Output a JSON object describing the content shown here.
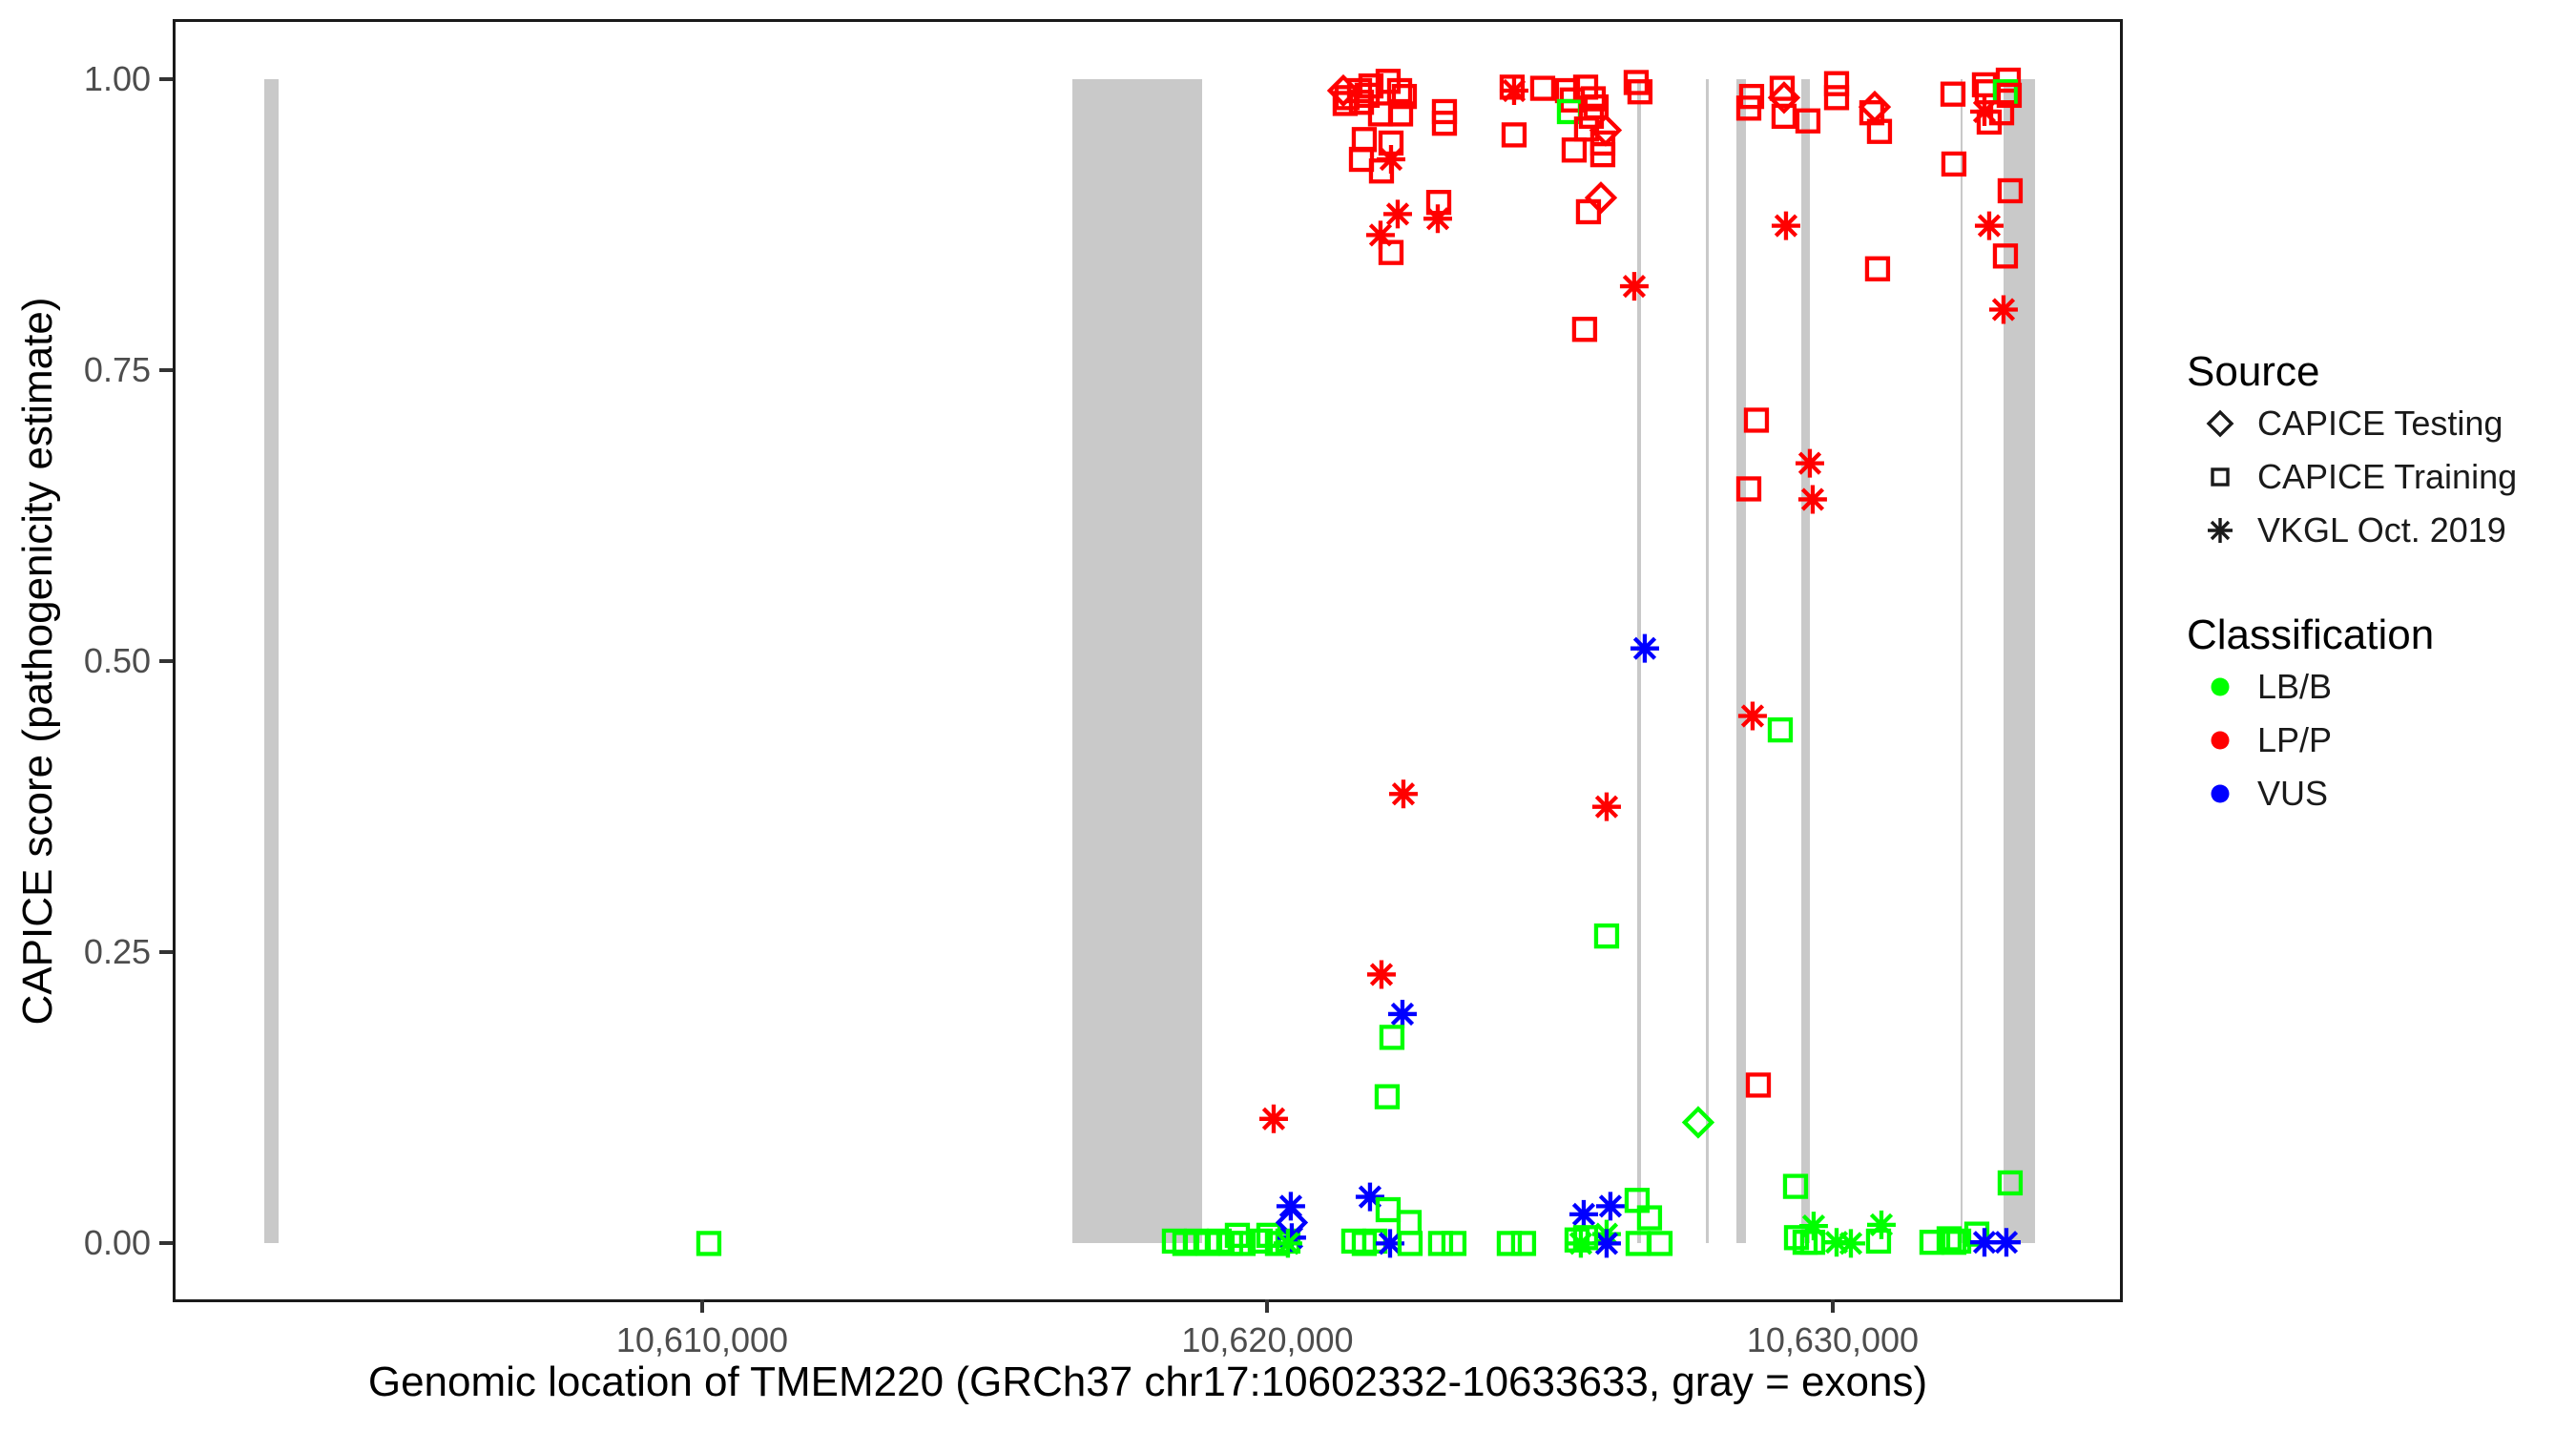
{
  "figure": {
    "x_axis_title": "Genomic location of TMEM220 (GRCh37 chr17:10602332-10633633, gray = exons)",
    "y_axis_title": "CAPICE score (pathogenicity estimate)"
  },
  "legend": {
    "source": {
      "title": "Source",
      "items": [
        {
          "symbol": "diamond",
          "label": "CAPICE Testing"
        },
        {
          "symbol": "square",
          "label": "CAPICE Training"
        },
        {
          "symbol": "asterisk",
          "label": "VKGL Oct. 2019"
        }
      ]
    },
    "classification": {
      "title": "Classification",
      "items": [
        {
          "color": "#00FF00",
          "label": "LB/B"
        },
        {
          "color": "#FF0000",
          "label": "LP/P"
        },
        {
          "color": "#0000FF",
          "label": "VUS"
        }
      ]
    }
  },
  "chart_data": {
    "type": "scatter",
    "xlabel": "Genomic location of TMEM220 (GRCh37 chr17:10602332-10633633, gray = exons)",
    "ylabel": "CAPICE score (pathogenicity estimate)",
    "xlim": [
      10600684,
      10635081
    ],
    "ylim": [
      -0.048,
      1.049
    ],
    "grid": false,
    "x_ticks": [
      {
        "value": 10610000,
        "label": "10,610,000"
      },
      {
        "value": 10620000,
        "label": "10,620,000"
      },
      {
        "value": 10630000,
        "label": "10,630,000"
      }
    ],
    "y_ticks": [
      {
        "value": 0.0,
        "label": "0.00"
      },
      {
        "value": 0.25,
        "label": "0.25"
      },
      {
        "value": 0.5,
        "label": "0.50"
      },
      {
        "value": 0.75,
        "label": "0.75"
      },
      {
        "value": 1.0,
        "label": "1.00"
      }
    ],
    "exon_color": "#C9C9C9",
    "exons": [
      [
        10602260,
        10602515
      ],
      [
        10616549,
        10618844
      ],
      [
        10626540,
        10626605
      ],
      [
        10627755,
        10627805
      ],
      [
        10628295,
        10628465
      ],
      [
        10629440,
        10629595
      ],
      [
        10632262,
        10632295
      ],
      [
        10633020,
        10633580
      ]
    ],
    "encoding": {
      "point_format": "[genomic_position, capice_score, shape, classification]",
      "shapes": {
        "sq": "CAPICE Training (open square)",
        "di": "CAPICE Testing (open diamond)",
        "as": "VKGL Oct. 2019 (asterisk)"
      },
      "class_colors": {
        "LB/B": "#00FF00",
        "LP/P": "#FF0000",
        "VUS": "#0000FF"
      }
    },
    "points": [
      [
        10621342,
        0.99,
        "di",
        "LP/P"
      ],
      [
        10621409,
        0.984,
        "sq",
        "LP/P"
      ],
      [
        10621629,
        0.99,
        "sq",
        "LP/P"
      ],
      [
        10621663,
        0.98,
        "sq",
        "LP/P"
      ],
      [
        10621831,
        0.994,
        "sq",
        "LP/P"
      ],
      [
        10622135,
        0.998,
        "sq",
        "LP/P"
      ],
      [
        10622338,
        0.99,
        "sq",
        "LP/P"
      ],
      [
        10622422,
        0.985,
        "sq",
        "LP/P"
      ],
      [
        10621764,
        0.986,
        "sq",
        "LP/P"
      ],
      [
        10621375,
        0.979,
        "sq",
        "LP/P"
      ],
      [
        10622000,
        0.97,
        "sq",
        "LP/P"
      ],
      [
        10622355,
        0.97,
        "sq",
        "LP/P"
      ],
      [
        10621713,
        0.948,
        "sq",
        "LP/P"
      ],
      [
        10621663,
        0.931,
        "sq",
        "LP/P"
      ],
      [
        10622186,
        0.945,
        "sq",
        "LP/P"
      ],
      [
        10622017,
        0.921,
        "sq",
        "LP/P"
      ],
      [
        10622186,
        0.931,
        "as",
        "LP/P"
      ],
      [
        10622304,
        0.884,
        "as",
        "LP/P"
      ],
      [
        10622000,
        0.866,
        "as",
        "LP/P"
      ],
      [
        10622186,
        0.851,
        "sq",
        "LP/P"
      ],
      [
        10623131,
        0.972,
        "sq",
        "LP/P"
      ],
      [
        10623131,
        0.962,
        "sq",
        "LP/P"
      ],
      [
        10623030,
        0.894,
        "sq",
        "LP/P"
      ],
      [
        10623013,
        0.88,
        "as",
        "LP/P"
      ],
      [
        10624329,
        0.993,
        "sq",
        "LP/P"
      ],
      [
        10624363,
        0.99,
        "as",
        "LP/P"
      ],
      [
        10624869,
        0.992,
        "sq",
        "LP/P"
      ],
      [
        10624363,
        0.952,
        "sq",
        "LP/P"
      ],
      [
        10625308,
        0.99,
        "sq",
        "LP/P"
      ],
      [
        10625392,
        0.982,
        "sq",
        "LP/P"
      ],
      [
        10625342,
        0.972,
        "sq",
        "LB/B"
      ],
      [
        10625629,
        0.993,
        "sq",
        "LP/P"
      ],
      [
        10625764,
        0.983,
        "sq",
        "LP/P"
      ],
      [
        10625814,
        0.976,
        "sq",
        "LP/P"
      ],
      [
        10625730,
        0.968,
        "sq",
        "LP/P"
      ],
      [
        10625645,
        0.957,
        "sq",
        "LP/P"
      ],
      [
        10625983,
        0.956,
        "di",
        "LP/P"
      ],
      [
        10625932,
        0.945,
        "sq",
        "LP/P"
      ],
      [
        10625426,
        0.939,
        "sq",
        "LP/P"
      ],
      [
        10625932,
        0.935,
        "sq",
        "LP/P"
      ],
      [
        10625899,
        0.898,
        "di",
        "LP/P"
      ],
      [
        10625679,
        0.886,
        "sq",
        "LP/P"
      ],
      [
        10626523,
        0.997,
        "sq",
        "LP/P"
      ],
      [
        10626590,
        0.989,
        "sq",
        "LP/P"
      ],
      [
        10626489,
        0.822,
        "as",
        "LP/P"
      ],
      [
        10625611,
        0.785,
        "sq",
        "LP/P"
      ],
      [
        10628565,
        0.985,
        "sq",
        "LP/P"
      ],
      [
        10628515,
        0.975,
        "sq",
        "LP/P"
      ],
      [
        10629106,
        0.992,
        "sq",
        "LP/P"
      ],
      [
        10629139,
        0.984,
        "di",
        "LP/P"
      ],
      [
        10629139,
        0.968,
        "sq",
        "LP/P"
      ],
      [
        10629561,
        0.964,
        "sq",
        "LP/P"
      ],
      [
        10629173,
        0.874,
        "as",
        "LP/P"
      ],
      [
        10630068,
        0.996,
        "sq",
        "LP/P"
      ],
      [
        10630068,
        0.984,
        "sq",
        "LP/P"
      ],
      [
        10630743,
        0.976,
        "di",
        "LP/P"
      ],
      [
        10630692,
        0.971,
        "sq",
        "LP/P"
      ],
      [
        10630827,
        0.955,
        "sq",
        "LP/P"
      ],
      [
        10630793,
        0.837,
        "sq",
        "LP/P"
      ],
      [
        10632127,
        0.987,
        "sq",
        "LP/P"
      ],
      [
        10632684,
        0.995,
        "sq",
        "LP/P"
      ],
      [
        10632734,
        0.989,
        "sq",
        "LP/P"
      ],
      [
        10633106,
        0.999,
        "sq",
        "LP/P"
      ],
      [
        10633055,
        0.989,
        "sq",
        "LB/B"
      ],
      [
        10633122,
        0.986,
        "sq",
        "LP/P"
      ],
      [
        10632684,
        0.972,
        "as",
        "LP/P"
      ],
      [
        10632988,
        0.971,
        "sq",
        "LP/P"
      ],
      [
        10632768,
        0.963,
        "sq",
        "LP/P"
      ],
      [
        10632143,
        0.927,
        "sq",
        "LP/P"
      ],
      [
        10633139,
        0.904,
        "sq",
        "LP/P"
      ],
      [
        10632768,
        0.874,
        "as",
        "LP/P"
      ],
      [
        10633055,
        0.848,
        "sq",
        "LP/P"
      ],
      [
        10633021,
        0.802,
        "as",
        "LP/P"
      ],
      [
        10628650,
        0.707,
        "sq",
        "LP/P"
      ],
      [
        10629595,
        0.67,
        "as",
        "LP/P"
      ],
      [
        10628515,
        0.648,
        "sq",
        "LP/P"
      ],
      [
        10629645,
        0.639,
        "as",
        "LP/P"
      ],
      [
        10626675,
        0.511,
        "as",
        "VUS"
      ],
      [
        10628582,
        0.453,
        "as",
        "LP/P"
      ],
      [
        10629072,
        0.441,
        "sq",
        "LB/B"
      ],
      [
        10622405,
        0.386,
        "as",
        "LP/P"
      ],
      [
        10626000,
        0.375,
        "as",
        "LP/P"
      ],
      [
        10626000,
        0.264,
        "sq",
        "LB/B"
      ],
      [
        10622017,
        0.231,
        "as",
        "LP/P"
      ],
      [
        10622388,
        0.197,
        "as",
        "VUS"
      ],
      [
        10622202,
        0.177,
        "sq",
        "LB/B"
      ],
      [
        10622118,
        0.126,
        "sq",
        "LB/B"
      ],
      [
        10620110,
        0.107,
        "as",
        "LP/P"
      ],
      [
        10628684,
        0.136,
        "sq",
        "LP/P"
      ],
      [
        10627620,
        0.104,
        "di",
        "LB/B"
      ],
      [
        10629342,
        0.049,
        "sq",
        "LB/B"
      ],
      [
        10633139,
        0.052,
        "sq",
        "LB/B"
      ],
      [
        10610118,
        0.0,
        "sq",
        "LB/B"
      ],
      [
        10618354,
        0.002,
        "sq",
        "LB/B"
      ],
      [
        10618539,
        0.0,
        "sq",
        "LB/B"
      ],
      [
        10618742,
        0.002,
        "sq",
        "LB/B"
      ],
      [
        10618944,
        0.0,
        "sq",
        "LB/B"
      ],
      [
        10619147,
        0.002,
        "sq",
        "LB/B"
      ],
      [
        10619349,
        0.0,
        "sq",
        "LB/B"
      ],
      [
        10619468,
        0.007,
        "sq",
        "LB/B"
      ],
      [
        10619569,
        0.0,
        "sq",
        "LB/B"
      ],
      [
        10619873,
        0.002,
        "sq",
        "LB/B"
      ],
      [
        10620025,
        0.007,
        "sq",
        "LB/B"
      ],
      [
        10620177,
        0.0,
        "sq",
        "LB/B"
      ],
      [
        10620362,
        0.002,
        "sq",
        "LB/B"
      ],
      [
        10620413,
        0.032,
        "as",
        "VUS"
      ],
      [
        10620430,
        0.018,
        "di",
        "VUS"
      ],
      [
        10620430,
        0.005,
        "as",
        "VUS"
      ],
      [
        10620362,
        0.0,
        "as",
        "LB/B"
      ],
      [
        10621814,
        0.04,
        "as",
        "VUS"
      ],
      [
        10622135,
        0.029,
        "sq",
        "LB/B"
      ],
      [
        10622506,
        0.018,
        "sq",
        "LB/B"
      ],
      [
        10621527,
        0.002,
        "sq",
        "LB/B"
      ],
      [
        10621713,
        0.0,
        "sq",
        "LB/B"
      ],
      [
        10621899,
        0.002,
        "sq",
        "LB/B"
      ],
      [
        10622169,
        0.0,
        "as",
        "VUS"
      ],
      [
        10622523,
        0.0,
        "sq",
        "LB/B"
      ],
      [
        10623063,
        0.0,
        "sq",
        "LB/B"
      ],
      [
        10623299,
        0.0,
        "sq",
        "LB/B"
      ],
      [
        10624278,
        0.0,
        "sq",
        "LB/B"
      ],
      [
        10624531,
        0.0,
        "sq",
        "LB/B"
      ],
      [
        10625595,
        0.025,
        "as",
        "VUS"
      ],
      [
        10626067,
        0.032,
        "as",
        "VUS"
      ],
      [
        10626000,
        0.008,
        "as",
        "LB/B"
      ],
      [
        10626000,
        0.0,
        "as",
        "VUS"
      ],
      [
        10625544,
        0.0,
        "as",
        "LB/B"
      ],
      [
        10625477,
        0.003,
        "sq",
        "LB/B"
      ],
      [
        10625629,
        0.005,
        "sq",
        "LB/B"
      ],
      [
        10626540,
        0.037,
        "sq",
        "LB/B"
      ],
      [
        10626759,
        0.022,
        "sq",
        "LB/B"
      ],
      [
        10626557,
        0.0,
        "sq",
        "LB/B"
      ],
      [
        10626945,
        0.0,
        "sq",
        "LB/B"
      ],
      [
        10629662,
        0.015,
        "as",
        "LB/B"
      ],
      [
        10629359,
        0.005,
        "sq",
        "LB/B"
      ],
      [
        10629511,
        0.001,
        "sq",
        "LB/B"
      ],
      [
        10629645,
        0.001,
        "sq",
        "LB/B"
      ],
      [
        10630068,
        0.001,
        "as",
        "LB/B"
      ],
      [
        10630321,
        0.0,
        "as",
        "LB/B"
      ],
      [
        10630861,
        0.016,
        "as",
        "LB/B"
      ],
      [
        10630810,
        0.002,
        "sq",
        "LB/B"
      ],
      [
        10631755,
        0.001,
        "sq",
        "LB/B"
      ],
      [
        10632059,
        0.004,
        "sq",
        "LB/B"
      ],
      [
        10632143,
        0.001,
        "sq",
        "LB/B"
      ],
      [
        10632228,
        0.002,
        "sq",
        "LB/B"
      ],
      [
        10632549,
        0.008,
        "sq",
        "LB/B"
      ],
      [
        10632684,
        0.001,
        "as",
        "VUS"
      ],
      [
        10633072,
        0.001,
        "as",
        "VUS"
      ]
    ]
  }
}
